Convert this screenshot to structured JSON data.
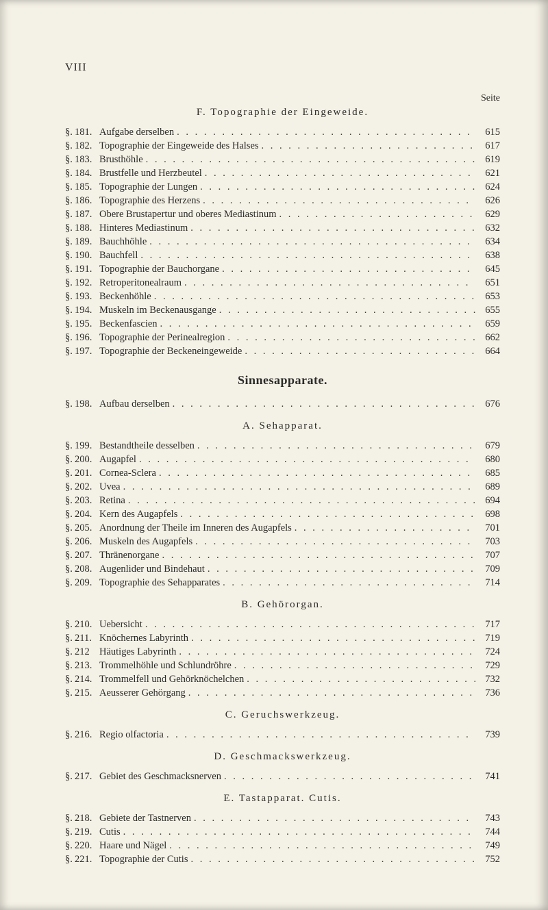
{
  "header": {
    "roman": "VIII",
    "seite": "Seite"
  },
  "sectionF": {
    "title": "F. Topographie der Eingeweide.",
    "entries": [
      {
        "sym": "§.",
        "no": "181.",
        "label": "Aufgabe derselben",
        "pg": "615"
      },
      {
        "sym": "§.",
        "no": "182.",
        "label": "Topographie der Eingeweide des Halses",
        "pg": "617"
      },
      {
        "sym": "§.",
        "no": "183.",
        "label": "Brusthöhle",
        "pg": "619"
      },
      {
        "sym": "§.",
        "no": "184.",
        "label": "Brustfelle und Herzbeutel",
        "pg": "621"
      },
      {
        "sym": "§.",
        "no": "185.",
        "label": "Topographie der Lungen",
        "pg": "624"
      },
      {
        "sym": "§.",
        "no": "186.",
        "label": "Topographie des Herzens",
        "pg": "626"
      },
      {
        "sym": "§.",
        "no": "187.",
        "label": "Obere Brustapertur und oberes Mediastinum",
        "pg": "629"
      },
      {
        "sym": "§.",
        "no": "188.",
        "label": "Hinteres Mediastinum",
        "pg": "632"
      },
      {
        "sym": "§.",
        "no": "189.",
        "label": "Bauchhöhle",
        "pg": "634"
      },
      {
        "sym": "§.",
        "no": "190.",
        "label": "Bauchfell",
        "pg": "638"
      },
      {
        "sym": "§.",
        "no": "191.",
        "label": "Topographie der Bauchorgane",
        "pg": "645"
      },
      {
        "sym": "§.",
        "no": "192.",
        "label": "Retroperitonealraum",
        "pg": "651"
      },
      {
        "sym": "§.",
        "no": "193.",
        "label": "Beckenhöhle",
        "pg": "653"
      },
      {
        "sym": "§.",
        "no": "194.",
        "label": "Muskeln im Beckenausgange",
        "pg": "655"
      },
      {
        "sym": "§.",
        "no": "195.",
        "label": "Beckenfascien",
        "pg": "659"
      },
      {
        "sym": "§.",
        "no": "196.",
        "label": "Topographie der Perinealregion",
        "pg": "662"
      },
      {
        "sym": "§.",
        "no": "197.",
        "label": "Topographie der Beckeneingeweide",
        "pg": "664"
      }
    ]
  },
  "sinnes": {
    "title": "Sinnesapparate.",
    "entry198": {
      "sym": "§.",
      "no": "198.",
      "label": "Aufbau derselben",
      "pg": "676"
    }
  },
  "subA": {
    "title": "A. Sehapparat.",
    "entries": [
      {
        "sym": "§.",
        "no": "199.",
        "label": "Bestandtheile desselben",
        "pg": "679"
      },
      {
        "sym": "§.",
        "no": "200.",
        "label": "Augapfel",
        "pg": "680"
      },
      {
        "sym": "§.",
        "no": "201.",
        "label": "Cornea-Sclera",
        "pg": "685"
      },
      {
        "sym": "§.",
        "no": "202.",
        "label": "Uvea",
        "pg": "689"
      },
      {
        "sym": "§.",
        "no": "203.",
        "label": "Retina",
        "pg": "694"
      },
      {
        "sym": "§.",
        "no": "204.",
        "label": "Kern des Augapfels",
        "pg": "698"
      },
      {
        "sym": "§.",
        "no": "205.",
        "label": "Anordnung der Theile im Inneren des Augapfels",
        "pg": "701"
      },
      {
        "sym": "§.",
        "no": "206.",
        "label": "Muskeln des Augapfels",
        "pg": "703"
      },
      {
        "sym": "§.",
        "no": "207.",
        "label": "Thränenorgane",
        "pg": "707"
      },
      {
        "sym": "§.",
        "no": "208.",
        "label": "Augenlider und Bindehaut",
        "pg": "709"
      },
      {
        "sym": "§.",
        "no": "209.",
        "label": "Topographie des Sehapparates",
        "pg": "714"
      }
    ]
  },
  "subB": {
    "title": "B. Gehörorgan.",
    "entries": [
      {
        "sym": "§.",
        "no": "210.",
        "label": "Uebersicht",
        "pg": "717"
      },
      {
        "sym": "§.",
        "no": "211.",
        "label": "Knöchernes Labyrinth",
        "pg": "719"
      },
      {
        "sym": "§.",
        "no": "212",
        "label": "Häutiges Labyrinth",
        "pg": "724"
      },
      {
        "sym": "§.",
        "no": "213.",
        "label": "Trommelhöhle und Schlundröhre",
        "pg": "729"
      },
      {
        "sym": "§.",
        "no": "214.",
        "label": "Trommelfell und Gehörknöchelchen",
        "pg": "732"
      },
      {
        "sym": "§.",
        "no": "215.",
        "label": "Aeusserer Gehörgang",
        "pg": "736"
      }
    ]
  },
  "subC": {
    "title": "C. Geruchswerkzeug.",
    "entry": {
      "sym": "§.",
      "no": "216.",
      "label": "Regio olfactoria",
      "pg": "739"
    }
  },
  "subD": {
    "title": "D. Geschmackswerkzeug.",
    "entry": {
      "sym": "§.",
      "no": "217.",
      "label": "Gebiet des Geschmacksnerven",
      "pg": "741"
    }
  },
  "subE": {
    "title": "E. Tastapparat. Cutis.",
    "entries": [
      {
        "sym": "§.",
        "no": "218.",
        "label": "Gebiete der Tastnerven",
        "pg": "743"
      },
      {
        "sym": "§.",
        "no": "219.",
        "label": "Cutis",
        "pg": "744"
      },
      {
        "sym": "§.",
        "no": "220.",
        "label": "Haare und Nägel",
        "pg": "749"
      },
      {
        "sym": "§.",
        "no": "221.",
        "label": "Topographie der Cutis",
        "pg": "752"
      }
    ]
  }
}
